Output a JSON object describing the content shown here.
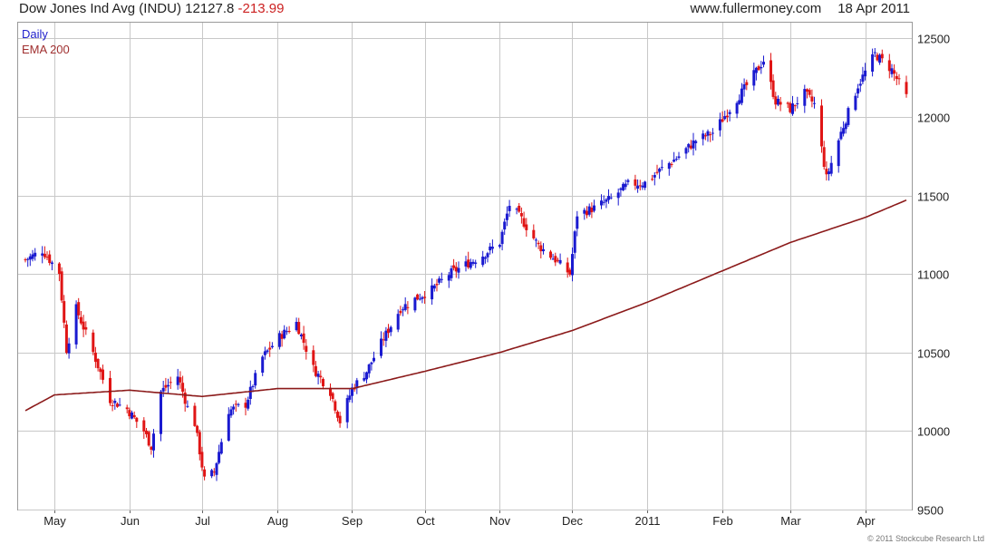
{
  "header": {
    "title": "Dow Jones Ind Avg (INDU)",
    "last_price": "12127.8",
    "change": "-213.99",
    "site": "www.fullermoney.com",
    "date": "18 Apr 2011"
  },
  "legend": {
    "daily": "Daily",
    "ema": "EMA 200"
  },
  "copyright": "© 2011 Stockcube Research Ltd",
  "colors": {
    "up": "#1a1ad0",
    "down": "#e01515",
    "ema": "#8b1a1a",
    "grid": "#c8c8c8",
    "legend_daily": "#2222cc",
    "legend_ema": "#a03030"
  },
  "chart_data": {
    "type": "candlestick",
    "y_axis": {
      "min": 9500,
      "max": 12600,
      "ticks": [
        9500,
        10000,
        10500,
        11000,
        11500,
        12000,
        12500
      ],
      "position": "right"
    },
    "x_axis": {
      "start": "2010-04-19",
      "end": "2011-04-18",
      "ticks": [
        {
          "label": "May",
          "date": "2010-05-01"
        },
        {
          "label": "Jun",
          "date": "2010-06-01"
        },
        {
          "label": "Jul",
          "date": "2010-07-01"
        },
        {
          "label": "Aug",
          "date": "2010-08-01"
        },
        {
          "label": "Sep",
          "date": "2010-09-01"
        },
        {
          "label": "Oct",
          "date": "2010-10-01"
        },
        {
          "label": "Nov",
          "date": "2010-11-01"
        },
        {
          "label": "Dec",
          "date": "2010-12-01"
        },
        {
          "label": "2011",
          "date": "2011-01-01"
        },
        {
          "label": "Feb",
          "date": "2011-02-01"
        },
        {
          "label": "Mar",
          "date": "2011-03-01"
        },
        {
          "label": "Apr",
          "date": "2011-04-01"
        }
      ]
    },
    "grid": true,
    "legend_position": "top-left",
    "close_series": [
      [
        "2010-04-19",
        11090
      ],
      [
        "2010-04-26",
        11150
      ],
      [
        "2010-05-03",
        11010
      ],
      [
        "2010-05-06",
        10520
      ],
      [
        "2010-05-10",
        10780
      ],
      [
        "2010-05-17",
        10500
      ],
      [
        "2010-05-24",
        10200
      ],
      [
        "2010-05-31",
        10140
      ],
      [
        "2010-06-07",
        10000
      ],
      [
        "2010-06-10",
        9900
      ],
      [
        "2010-06-14",
        10250
      ],
      [
        "2010-06-21",
        10350
      ],
      [
        "2010-06-25",
        10150
      ],
      [
        "2010-06-28",
        10050
      ],
      [
        "2010-07-02",
        9690
      ],
      [
        "2010-07-06",
        9740
      ],
      [
        "2010-07-12",
        10130
      ],
      [
        "2010-07-19",
        10170
      ],
      [
        "2010-07-26",
        10470
      ],
      [
        "2010-08-02",
        10600
      ],
      [
        "2010-08-09",
        10690
      ],
      [
        "2010-08-16",
        10400
      ],
      [
        "2010-08-23",
        10250
      ],
      [
        "2010-08-27",
        10060
      ],
      [
        "2010-09-01",
        10270
      ],
      [
        "2010-09-07",
        10380
      ],
      [
        "2010-09-14",
        10590
      ],
      [
        "2010-09-21",
        10780
      ],
      [
        "2010-09-28",
        10850
      ],
      [
        "2010-10-04",
        10900
      ],
      [
        "2010-10-11",
        11000
      ],
      [
        "2010-10-18",
        11060
      ],
      [
        "2010-10-25",
        11120
      ],
      [
        "2010-11-01",
        11200
      ],
      [
        "2010-11-05",
        11440
      ],
      [
        "2010-11-10",
        11350
      ],
      [
        "2010-11-17",
        11180
      ],
      [
        "2010-11-24",
        11090
      ],
      [
        "2010-11-30",
        11000
      ],
      [
        "2010-12-03",
        11380
      ],
      [
        "2010-12-10",
        11420
      ],
      [
        "2010-12-17",
        11480
      ],
      [
        "2010-12-24",
        11570
      ],
      [
        "2010-12-31",
        11580
      ],
      [
        "2011-01-07",
        11670
      ],
      [
        "2011-01-14",
        11750
      ],
      [
        "2011-01-21",
        11850
      ],
      [
        "2011-01-28",
        11900
      ],
      [
        "2011-02-04",
        12050
      ],
      [
        "2011-02-11",
        12200
      ],
      [
        "2011-02-18",
        12360
      ],
      [
        "2011-02-23",
        12100
      ],
      [
        "2011-03-01",
        12050
      ],
      [
        "2011-03-07",
        12150
      ],
      [
        "2011-03-11",
        12080
      ],
      [
        "2011-03-16",
        11610
      ],
      [
        "2011-03-22",
        11900
      ],
      [
        "2011-03-29",
        12200
      ],
      [
        "2011-04-05",
        12400
      ],
      [
        "2011-04-12",
        12300
      ],
      [
        "2011-04-18",
        12127.8
      ]
    ],
    "ema200_series": [
      [
        "2010-04-19",
        10130
      ],
      [
        "2010-05-01",
        10230
      ],
      [
        "2010-06-01",
        10260
      ],
      [
        "2010-07-01",
        10220
      ],
      [
        "2010-08-01",
        10270
      ],
      [
        "2010-09-01",
        10270
      ],
      [
        "2010-10-01",
        10380
      ],
      [
        "2010-11-01",
        10500
      ],
      [
        "2010-12-01",
        10640
      ],
      [
        "2011-01-01",
        10820
      ],
      [
        "2011-02-01",
        11020
      ],
      [
        "2011-03-01",
        11200
      ],
      [
        "2011-04-01",
        11360
      ],
      [
        "2011-04-18",
        11470
      ]
    ]
  }
}
